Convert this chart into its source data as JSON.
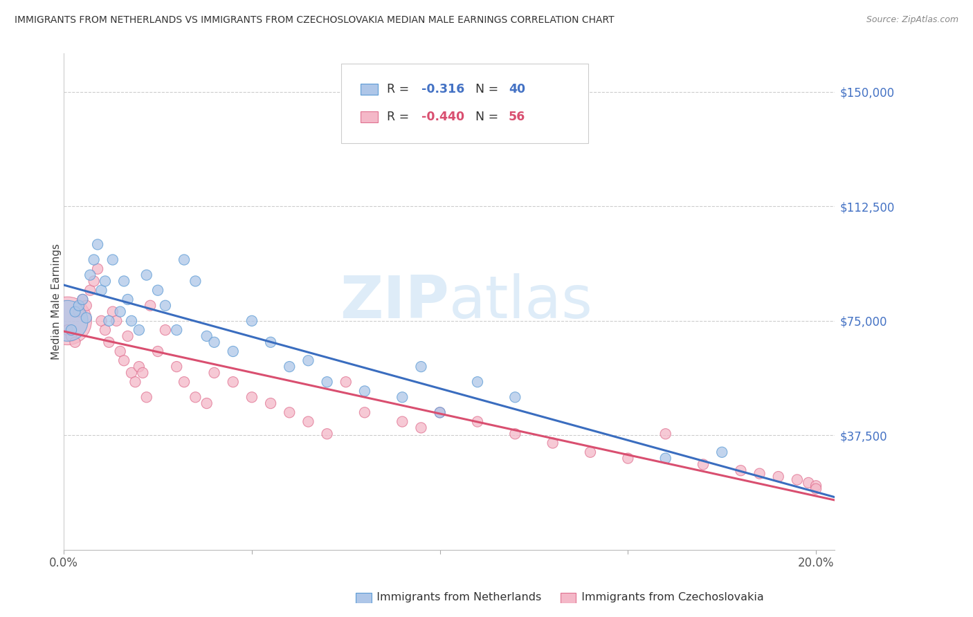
{
  "title": "IMMIGRANTS FROM NETHERLANDS VS IMMIGRANTS FROM CZECHOSLOVAKIA MEDIAN MALE EARNINGS CORRELATION CHART",
  "source": "Source: ZipAtlas.com",
  "ylabel": "Median Male Earnings",
  "xlim": [
    0.0,
    0.205
  ],
  "ylim": [
    0,
    162500
  ],
  "yticks": [
    0,
    37500,
    75000,
    112500,
    150000
  ],
  "ytick_labels": [
    "",
    "$37,500",
    "$75,000",
    "$112,500",
    "$150,000"
  ],
  "xticks": [
    0.0,
    0.05,
    0.1,
    0.15,
    0.2
  ],
  "xtick_labels": [
    "0.0%",
    "",
    "",
    "",
    "20.0%"
  ],
  "nl_color_fill": "#aec6e8",
  "nl_color_edge": "#5b9bd5",
  "cz_color_fill": "#f4b8c8",
  "cz_color_edge": "#e07090",
  "line_nl_color": "#3a6dbf",
  "line_cz_color": "#d94f70",
  "watermark_color": "#d0e8f8",
  "nl_x": [
    0.001,
    0.002,
    0.003,
    0.004,
    0.005,
    0.006,
    0.007,
    0.008,
    0.009,
    0.01,
    0.011,
    0.012,
    0.013,
    0.015,
    0.016,
    0.017,
    0.018,
    0.02,
    0.022,
    0.025,
    0.027,
    0.03,
    0.032,
    0.035,
    0.038,
    0.04,
    0.045,
    0.05,
    0.055,
    0.06,
    0.065,
    0.07,
    0.08,
    0.09,
    0.095,
    0.1,
    0.11,
    0.12,
    0.16,
    0.175
  ],
  "nl_y": [
    75000,
    72000,
    78000,
    80000,
    82000,
    76000,
    90000,
    95000,
    100000,
    85000,
    88000,
    75000,
    95000,
    78000,
    88000,
    82000,
    75000,
    72000,
    90000,
    85000,
    80000,
    72000,
    95000,
    88000,
    70000,
    68000,
    65000,
    75000,
    68000,
    60000,
    62000,
    55000,
    52000,
    50000,
    60000,
    45000,
    55000,
    50000,
    30000,
    32000
  ],
  "cz_x": [
    0.001,
    0.001,
    0.002,
    0.003,
    0.004,
    0.005,
    0.006,
    0.007,
    0.008,
    0.009,
    0.01,
    0.011,
    0.012,
    0.013,
    0.014,
    0.015,
    0.016,
    0.017,
    0.018,
    0.019,
    0.02,
    0.021,
    0.022,
    0.023,
    0.025,
    0.027,
    0.03,
    0.032,
    0.035,
    0.038,
    0.04,
    0.045,
    0.05,
    0.055,
    0.06,
    0.065,
    0.07,
    0.075,
    0.08,
    0.09,
    0.095,
    0.1,
    0.11,
    0.12,
    0.13,
    0.14,
    0.15,
    0.16,
    0.17,
    0.18,
    0.185,
    0.19,
    0.195,
    0.198,
    0.2,
    0.2
  ],
  "cz_y": [
    75000,
    72000,
    70000,
    68000,
    78000,
    82000,
    80000,
    85000,
    88000,
    92000,
    75000,
    72000,
    68000,
    78000,
    75000,
    65000,
    62000,
    70000,
    58000,
    55000,
    60000,
    58000,
    50000,
    80000,
    65000,
    72000,
    60000,
    55000,
    50000,
    48000,
    58000,
    55000,
    50000,
    48000,
    45000,
    42000,
    38000,
    55000,
    45000,
    42000,
    40000,
    45000,
    42000,
    38000,
    35000,
    32000,
    30000,
    38000,
    28000,
    26000,
    25000,
    24000,
    23000,
    22000,
    21000,
    20000
  ],
  "cz_large_idx": 0,
  "cz_large_size": 2500,
  "nl_large_idx": 0,
  "nl_large_size": 1800,
  "point_size": 120
}
